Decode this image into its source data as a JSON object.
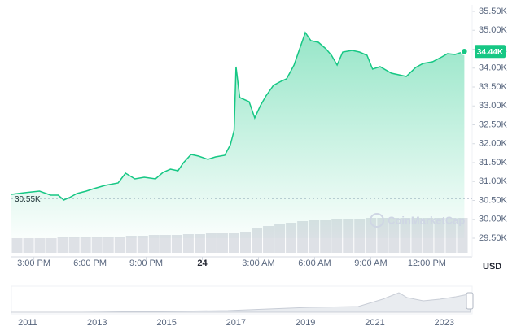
{
  "chart_data": {
    "type": "line",
    "x": [
      13.8,
      14.5,
      15.3,
      15.9,
      16.3,
      16.6,
      16.9,
      17.3,
      17.8,
      18.2,
      18.8,
      19.5,
      19.9,
      20.4,
      20.9,
      21.5,
      21.9,
      22.3,
      22.7,
      23.0,
      23.4,
      23.8,
      24.3,
      24.7,
      25.2,
      25.5,
      25.7,
      25.8,
      26.0,
      26.5,
      26.8,
      27.1,
      27.4,
      27.8,
      28.2,
      28.5,
      28.9,
      29.2,
      29.5,
      29.8,
      30.2,
      30.6,
      30.9,
      31.2,
      31.5,
      32.0,
      32.4,
      32.8,
      33.1,
      33.5,
      34.1,
      34.5,
      34.9,
      35.4,
      35.8,
      36.3,
      36.8,
      37.1,
      37.5,
      38.0
    ],
    "series": [
      {
        "color": "#16c784",
        "values": [
          30661,
          30704,
          30747,
          30640,
          30640,
          30511,
          30575,
          30683,
          30747,
          30812,
          30898,
          30962,
          31220,
          31070,
          31113,
          31070,
          31242,
          31328,
          31285,
          31500,
          31715,
          31672,
          31586,
          31651,
          31694,
          31973,
          32360,
          34038,
          33220,
          33113,
          32683,
          33005,
          33263,
          33543,
          33650,
          33715,
          34081,
          34511,
          34941,
          34726,
          34683,
          34511,
          34339,
          34081,
          34425,
          34468,
          34425,
          34339,
          33973,
          34038,
          33866,
          33823,
          33779,
          34016,
          34124,
          34167,
          34296,
          34382,
          34360,
          34440
        ]
      }
    ],
    "last_label": "34.44K",
    "baseline": {
      "value": 30550,
      "label": "30.55K"
    },
    "xlim": [
      13.8,
      38.2
    ],
    "xticks": [
      {
        "value": 15,
        "label": "3:00 PM"
      },
      {
        "value": 18,
        "label": "6:00 PM"
      },
      {
        "value": 21,
        "label": "9:00 PM"
      },
      {
        "value": 24,
        "label": "24"
      },
      {
        "value": 27,
        "label": "3:00 AM"
      },
      {
        "value": 30,
        "label": "6:00 AM"
      },
      {
        "value": 33,
        "label": "9:00 AM"
      },
      {
        "value": 36,
        "label": "12:00 PM"
      }
    ],
    "ylim": [
      29500,
      35500
    ],
    "yticks": [
      {
        "value": 29500,
        "label": "29.50K"
      },
      {
        "value": 30000,
        "label": "30.00K"
      },
      {
        "value": 30500,
        "label": "30.50K"
      },
      {
        "value": 31000,
        "label": "31.00K"
      },
      {
        "value": 31500,
        "label": "31.50K"
      },
      {
        "value": 32000,
        "label": "32.00K"
      },
      {
        "value": 32500,
        "label": "32.50K"
      },
      {
        "value": 33000,
        "label": "33.00K"
      },
      {
        "value": 33500,
        "label": "33.50K"
      },
      {
        "value": 34000,
        "label": "34.00K"
      },
      {
        "value": 34500,
        "label": "34.50K"
      },
      {
        "value": 35000,
        "label": "35.00K"
      },
      {
        "value": 35500,
        "label": "35.50K"
      }
    ],
    "currency": "USD",
    "watermark": "CoinMarketCap",
    "volume": {
      "color": "#c8cdd6",
      "values": [
        18,
        18,
        18,
        18,
        19,
        19,
        19,
        20,
        20,
        20,
        21,
        21,
        22,
        22,
        22,
        23,
        23,
        24,
        24,
        25,
        26,
        30,
        33,
        35,
        37,
        39,
        40,
        41,
        42,
        42,
        42,
        43,
        43,
        43,
        43,
        43,
        43,
        43,
        43,
        43
      ]
    },
    "navigator_years": [
      "2011",
      "2013",
      "2015",
      "2017",
      "2019",
      "2021",
      "2023"
    ]
  }
}
